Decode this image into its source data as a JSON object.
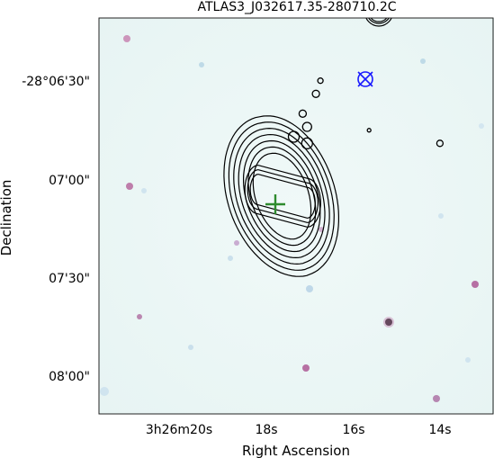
{
  "chart_data": {
    "type": "image",
    "title": "ATLAS3_J032617.35-280710.2C",
    "xlabel": "Right Ascension",
    "ylabel": "Declination",
    "x_ticks": [
      "3h26m20s",
      "18s",
      "16s",
      "14s"
    ],
    "y_ticks": [
      "-28°06'30\"",
      "07'00\"",
      "07'30\"",
      "08'00\""
    ],
    "x_tick_values_sec": [
      20,
      18,
      16,
      14
    ],
    "y_tick_values_arcsec_offset": [
      0,
      30,
      60,
      90
    ],
    "xlim_sec": [
      21.8,
      12.9
    ],
    "ylim_arcsec_offset": [
      -19,
      101
    ],
    "background_cmap": "pale cyan with sparse magenta/dark point sources",
    "radio_contours": {
      "color": "#000000",
      "components": [
        {
          "center_sec": [
            18.2,
            33
          ],
          "role": "lobe"
        },
        {
          "center_sec": [
            17.1,
            37
          ],
          "role": "lobe"
        }
      ],
      "levels": 10
    },
    "ir_markers": {
      "color": "#000000",
      "shape": "open circle",
      "points": [
        {
          "x_sec": 17.1,
          "y_arcsec": 14
        },
        {
          "x_sec": 16.9,
          "y_arcsec": 4
        },
        {
          "x_sec": 16.8,
          "y_arcsec": 0
        },
        {
          "x_sec": 17.2,
          "y_arcsec": 10
        },
        {
          "x_sec": 17.1,
          "y_arcsec": 19
        },
        {
          "x_sec": 17.4,
          "y_arcsec": 17
        },
        {
          "x_sec": 15.7,
          "y_arcsec": 15
        },
        {
          "x_sec": 14.1,
          "y_arcsec": 19
        }
      ]
    },
    "crosshair": {
      "color": "#2e8b2e",
      "shape": "plus",
      "x_sec": 17.8,
      "y_arcsec": 36
    },
    "target_marker": {
      "color": "#1a1aff",
      "shape": "circle-x",
      "x_sec": 15.7,
      "y_arcsec": 1
    }
  }
}
